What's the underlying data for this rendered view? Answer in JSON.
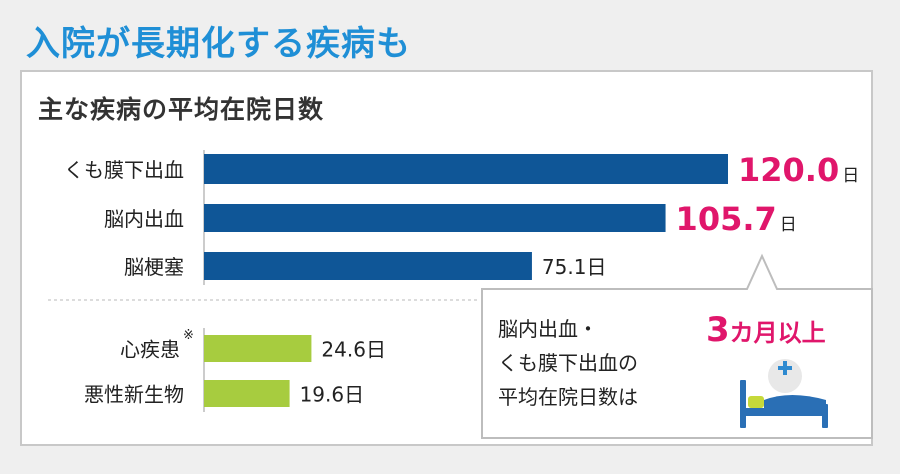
{
  "headline": "入院が長期化する疾病も",
  "chart_data": {
    "type": "bar",
    "orientation": "horizontal",
    "title": "主な疾病の平均在院日数",
    "unit": "日",
    "groups": [
      {
        "color": "#0f5697",
        "items": [
          {
            "label": "くも膜下出血",
            "value": 120.0,
            "display": "120.0",
            "emphasis": true
          },
          {
            "label": "脳内出血",
            "value": 105.7,
            "display": "105.7",
            "emphasis": true
          },
          {
            "label": "脳梗塞",
            "value": 75.1,
            "display": "75.1",
            "emphasis": false
          }
        ]
      },
      {
        "color": "#a7cc3f",
        "items": [
          {
            "label": "心疾患",
            "note": "※",
            "value": 24.6,
            "display": "24.6",
            "emphasis": false
          },
          {
            "label": "悪性新生物",
            "value": 19.6,
            "display": "19.6",
            "emphasis": false
          }
        ]
      }
    ],
    "xlim": [
      0,
      120
    ],
    "label_color": "#333333",
    "emphasis_color": "#e0166b"
  },
  "callout": {
    "lines": [
      "脳内出血・",
      "くも膜下出血の",
      "平均在院日数は"
    ],
    "highlight_num": "3",
    "highlight_rest": "カ月以上",
    "icon": "hospital-bed-icon"
  }
}
